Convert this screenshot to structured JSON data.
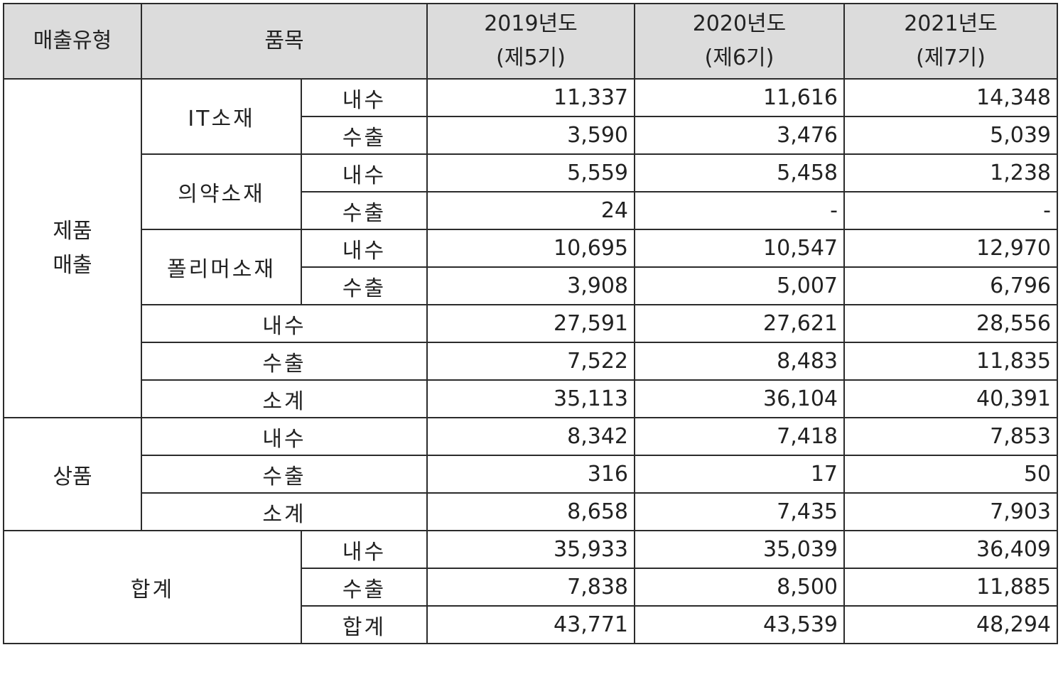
{
  "header": {
    "type": "매출유형",
    "item": "품목",
    "years": [
      {
        "year": "2019년도",
        "period": "(제5기)"
      },
      {
        "year": "2020년도",
        "period": "(제6기)"
      },
      {
        "year": "2021년도",
        "period": "(제7기)"
      }
    ]
  },
  "product": {
    "label_line1": "제품",
    "label_line2": "매출",
    "groups": [
      {
        "name": "IT소재",
        "rows": [
          {
            "sub": "내수",
            "values": [
              "11,337",
              "11,616",
              "14,348"
            ]
          },
          {
            "sub": "수출",
            "values": [
              "3,590",
              "3,476",
              "5,039"
            ]
          }
        ]
      },
      {
        "name": "의약소재",
        "rows": [
          {
            "sub": "내수",
            "values": [
              "5,559",
              "5,458",
              "1,238"
            ]
          },
          {
            "sub": "수출",
            "values": [
              "24",
              "-",
              "-"
            ]
          }
        ]
      },
      {
        "name": "폴리머소재",
        "rows": [
          {
            "sub": "내수",
            "values": [
              "10,695",
              "10,547",
              "12,970"
            ]
          },
          {
            "sub": "수출",
            "values": [
              "3,908",
              "5,007",
              "6,796"
            ]
          }
        ]
      }
    ],
    "totals": [
      {
        "label": "내수",
        "values": [
          "27,591",
          "27,621",
          "28,556"
        ]
      },
      {
        "label": "수출",
        "values": [
          "7,522",
          "8,483",
          "11,835"
        ]
      },
      {
        "label": "소계",
        "values": [
          "35,113",
          "36,104",
          "40,391"
        ]
      }
    ]
  },
  "goods": {
    "label": "상품",
    "rows": [
      {
        "label": "내수",
        "values": [
          "8,342",
          "7,418",
          "7,853"
        ]
      },
      {
        "label": "수출",
        "values": [
          "316",
          "17",
          "50"
        ]
      },
      {
        "label": "소계",
        "values": [
          "8,658",
          "7,435",
          "7,903"
        ]
      }
    ]
  },
  "total": {
    "label": "합계",
    "rows": [
      {
        "label": "내수",
        "values": [
          "35,933",
          "35,039",
          "36,409"
        ]
      },
      {
        "label": "수출",
        "values": [
          "7,838",
          "8,500",
          "11,885"
        ]
      },
      {
        "label": "합계",
        "values": [
          "43,771",
          "43,539",
          "48,294"
        ]
      }
    ]
  }
}
